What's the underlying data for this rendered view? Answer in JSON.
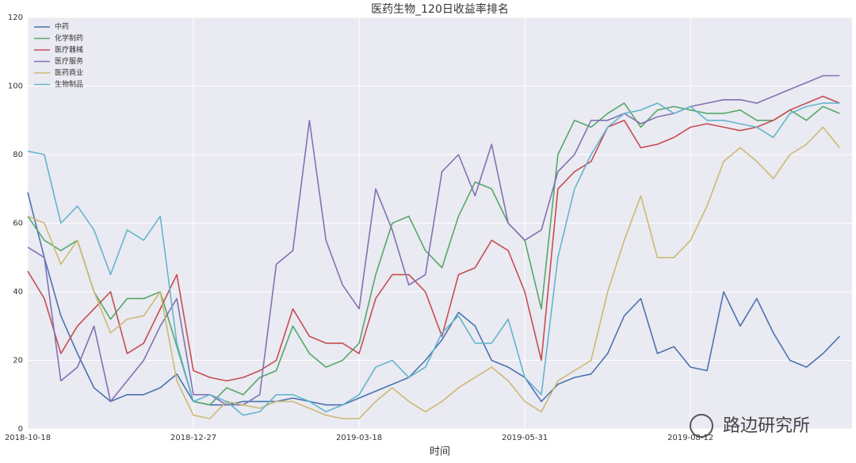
{
  "chart_data": {
    "type": "line",
    "title": "医药生物_120日收益率排名",
    "x_label": "时间",
    "watermark": "路边研究所",
    "categories": [
      "2018-10-18",
      null,
      null,
      null,
      null,
      null,
      null,
      null,
      null,
      null,
      "2018-12-27",
      null,
      null,
      null,
      null,
      null,
      null,
      null,
      null,
      null,
      "2019-03-18",
      null,
      null,
      null,
      null,
      null,
      null,
      null,
      null,
      null,
      "2019-05-31",
      null,
      null,
      null,
      null,
      null,
      null,
      null,
      null,
      null,
      "2019-08-12",
      null,
      null,
      null,
      null,
      null,
      null,
      null,
      null,
      null
    ],
    "ylim": [
      0,
      120
    ],
    "yticks": [
      0,
      20,
      40,
      60,
      80,
      100,
      120
    ],
    "grid": true,
    "legend": "upper-left",
    "series": [
      {
        "name": "中药",
        "color": "#4c72b0",
        "values": [
          69,
          50,
          33,
          22,
          12,
          8,
          10,
          10,
          12,
          16,
          8,
          7,
          7,
          8,
          8,
          8,
          9,
          8,
          7,
          7,
          9,
          11,
          13,
          15,
          20,
          26,
          34,
          30,
          20,
          18,
          15,
          8,
          13,
          15,
          16,
          22,
          33,
          38,
          22,
          24,
          18,
          17,
          40,
          30,
          38,
          28,
          20,
          18,
          22,
          27
        ]
      },
      {
        "name": "化学制药",
        "color": "#55a868",
        "values": [
          62,
          55,
          52,
          55,
          40,
          32,
          38,
          38,
          40,
          24,
          8,
          7,
          12,
          10,
          15,
          17,
          30,
          22,
          18,
          20,
          25,
          45,
          60,
          62,
          52,
          47,
          62,
          72,
          70,
          60,
          55,
          35,
          80,
          90,
          88,
          92,
          95,
          88,
          93,
          94,
          93,
          92,
          92,
          93,
          90,
          90,
          93,
          90,
          94,
          92
        ]
      },
      {
        "name": "医疗器械",
        "color": "#c44e52",
        "values": [
          46,
          38,
          22,
          30,
          35,
          40,
          22,
          25,
          35,
          45,
          17,
          15,
          14,
          15,
          17,
          20,
          35,
          27,
          25,
          25,
          22,
          38,
          45,
          45,
          40,
          27,
          45,
          47,
          55,
          52,
          40,
          20,
          70,
          75,
          78,
          88,
          90,
          82,
          83,
          85,
          88,
          89,
          88,
          87,
          88,
          90,
          93,
          95,
          97,
          95
        ]
      },
      {
        "name": "医疗服务",
        "color": "#8172b2",
        "values": [
          53,
          50,
          14,
          18,
          30,
          8,
          14,
          20,
          30,
          38,
          10,
          10,
          7,
          7,
          10,
          48,
          52,
          90,
          55,
          42,
          35,
          70,
          58,
          42,
          45,
          75,
          80,
          68,
          83,
          60,
          55,
          58,
          75,
          80,
          90,
          90,
          92,
          89,
          91,
          92,
          94,
          95,
          96,
          96,
          95,
          97,
          99,
          101,
          103,
          103
        ]
      },
      {
        "name": "医药商业",
        "color": "#ccb974",
        "values": [
          62,
          60,
          48,
          55,
          40,
          28,
          32,
          33,
          40,
          14,
          4,
          3,
          8,
          7,
          6,
          8,
          8,
          6,
          4,
          3,
          3,
          8,
          12,
          8,
          5,
          8,
          12,
          15,
          18,
          14,
          8,
          5,
          14,
          17,
          20,
          40,
          55,
          68,
          50,
          50,
          55,
          65,
          78,
          82,
          78,
          73,
          80,
          83,
          88,
          82
        ]
      },
      {
        "name": "生物制品",
        "color": "#64b5cd",
        "values": [
          81,
          80,
          60,
          65,
          58,
          45,
          58,
          55,
          62,
          25,
          8,
          10,
          8,
          4,
          5,
          10,
          10,
          8,
          5,
          7,
          10,
          18,
          20,
          15,
          18,
          28,
          33,
          25,
          25,
          32,
          15,
          10,
          50,
          70,
          80,
          88,
          92,
          93,
          95,
          92,
          94,
          90,
          90,
          89,
          88,
          85,
          92,
          94,
          95,
          95
        ]
      }
    ]
  }
}
